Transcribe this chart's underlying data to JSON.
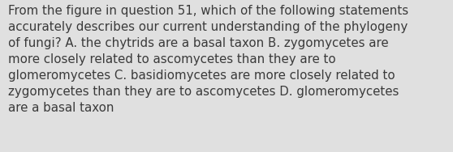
{
  "lines": [
    "From the figure in question 51, which of the following statements",
    "accurately describes our current understanding of the phylogeny",
    "of fungi? A. the chytrids are a basal taxon B. zygomycetes are",
    "more closely related to ascomycetes than they are to",
    "glomeromycetes C. basidiomycetes are more closely related to",
    "zygomycetes than they are to ascomycetes D. glomeromycetes",
    "are a basal taxon"
  ],
  "background_color": "#e0e0e0",
  "text_color": "#3a3a3a",
  "font_size": 10.8,
  "fig_width": 5.58,
  "fig_height": 1.88,
  "dpi": 100
}
